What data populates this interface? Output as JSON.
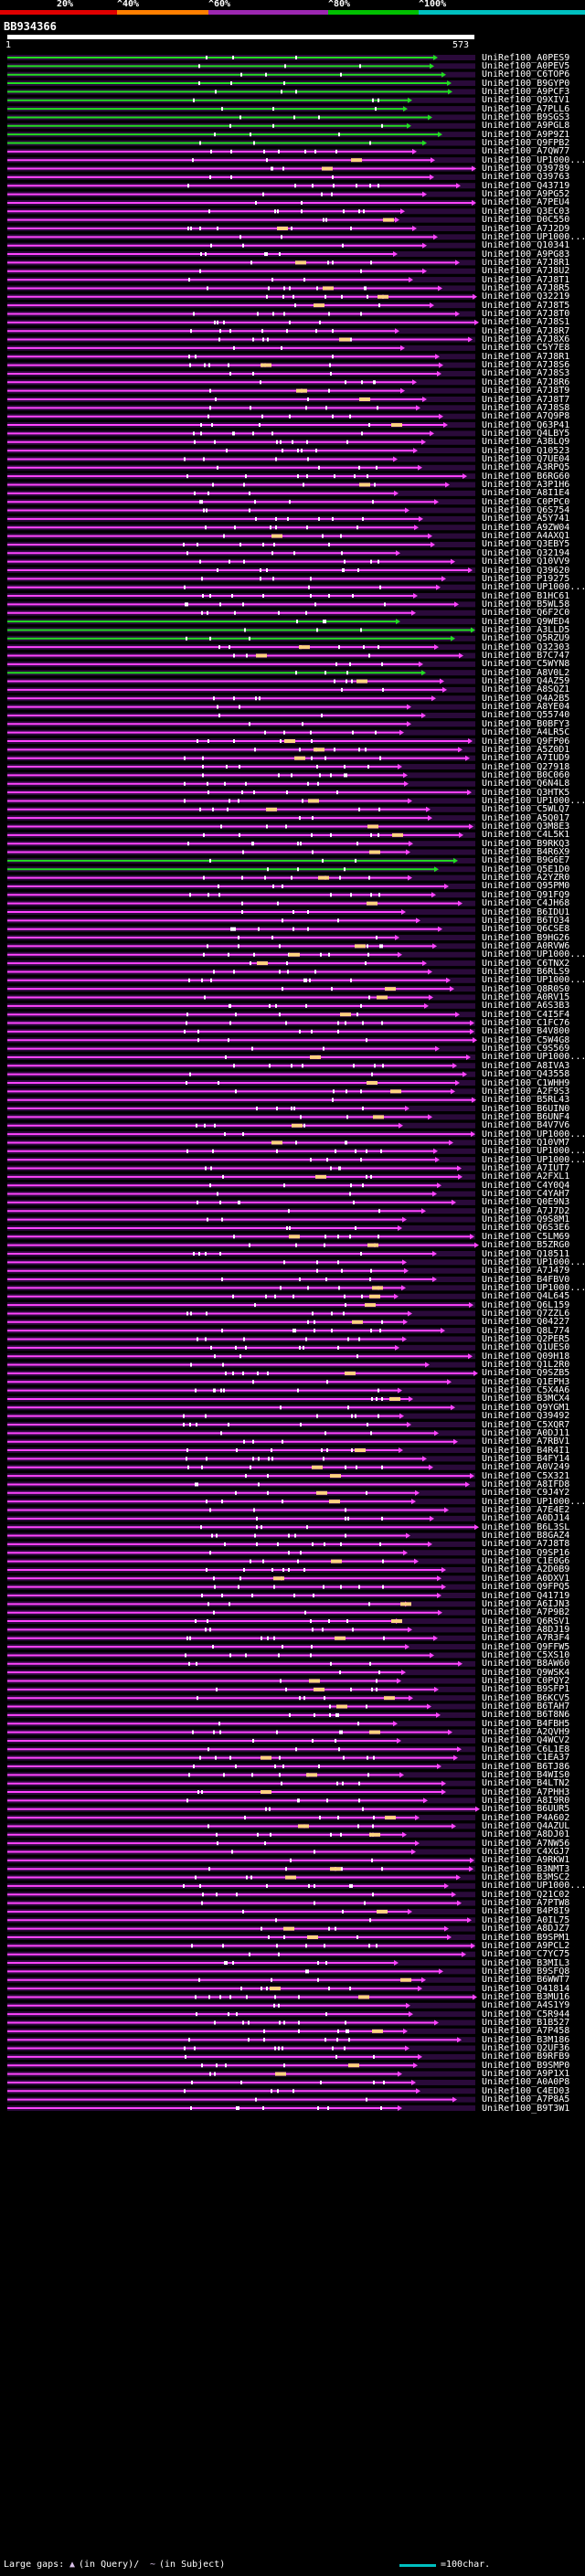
{
  "scale": {
    "ticks": [
      "20%",
      "^40%",
      "^60%",
      "^80%",
      "^100%"
    ],
    "colors": [
      "#e00000",
      "#ff7f00",
      "#9c27b0",
      "#00c000",
      "#00c0c0"
    ]
  },
  "query": {
    "id": "BB934366",
    "start": "1",
    "end": "573"
  },
  "colors": {
    "magenta": "#ff44ff",
    "violet": "#9c27b0",
    "green": "#22dd22",
    "orange": "#ff9900",
    "cyan": "#00c0c0"
  },
  "hits": [
    {
      "label": "UniRef100_A0PES9",
      "color": "green"
    },
    {
      "label": "UniRef100_A0PEV5",
      "color": "green"
    },
    {
      "label": "UniRef100_C6TOP6",
      "color": "green"
    },
    {
      "label": "UniRef100_B9GYP0",
      "color": "green"
    },
    {
      "label": "UniRef100_A9PCF3",
      "color": "green"
    },
    {
      "label": "UniRef100_Q9XIV1",
      "color": "green"
    },
    {
      "label": "UniRef100_A7PLL6",
      "color": "green"
    },
    {
      "label": "UniRef100_B9SGS3",
      "color": "green"
    },
    {
      "label": "UniRef100_A9PGL8",
      "color": "green"
    },
    {
      "label": "UniRef100_A9P9Z1",
      "color": "green"
    },
    {
      "label": "UniRef100_Q9FPB2",
      "color": "green"
    },
    {
      "label": "UniRef100_A7QW77",
      "color": "magenta"
    },
    {
      "label": "UniRef100_UP1000...",
      "color": "magenta"
    },
    {
      "label": "UniRef100_Q39789",
      "color": "magenta"
    },
    {
      "label": "UniRef100_Q39763",
      "color": "magenta"
    },
    {
      "label": "UniRef100_Q43719",
      "color": "magenta"
    },
    {
      "label": "UniRef100_A9PG52",
      "color": "magenta"
    },
    {
      "label": "UniRef100_A7PEU4",
      "color": "magenta"
    },
    {
      "label": "UniRef100_Q3EC03",
      "color": "magenta"
    },
    {
      "label": "UniRef100_D0C550",
      "color": "magenta"
    },
    {
      "label": "UniRef100_A7J2D9",
      "color": "magenta"
    },
    {
      "label": "UniRef100_UP1000...",
      "color": "magenta"
    },
    {
      "label": "UniRef100_Q10341",
      "color": "magenta"
    },
    {
      "label": "UniRef100_A9PG83",
      "color": "magenta"
    },
    {
      "label": "UniRef100_A7J8R1",
      "color": "magenta"
    },
    {
      "label": "UniRef100_A7J8U2",
      "color": "magenta"
    },
    {
      "label": "UniRef100_A7J8T1",
      "color": "magenta"
    },
    {
      "label": "UniRef100_A7J8R5",
      "color": "magenta"
    },
    {
      "label": "UniRef100_Q32219",
      "color": "magenta"
    },
    {
      "label": "UniRef100_A7J8T5",
      "color": "magenta"
    },
    {
      "label": "UniRef100_A7J8T0",
      "color": "magenta"
    },
    {
      "label": "UniRef100_A7J8S1",
      "color": "magenta"
    },
    {
      "label": "UniRef100_A7J8R7",
      "color": "magenta"
    },
    {
      "label": "UniRef100_A7J8X6",
      "color": "magenta"
    },
    {
      "label": "UniRef100_C5Y7E8",
      "color": "magenta"
    },
    {
      "label": "UniRef100_A7J8R1",
      "color": "magenta"
    },
    {
      "label": "UniRef100_A7J8S6",
      "color": "magenta"
    },
    {
      "label": "UniRef100_A7J8S3",
      "color": "magenta"
    },
    {
      "label": "UniRef100_A7J8R6",
      "color": "magenta"
    },
    {
      "label": "UniRef100_A7J8T9",
      "color": "magenta"
    },
    {
      "label": "UniRef100_A7J8T7",
      "color": "magenta"
    },
    {
      "label": "UniRef100_A7J8S8",
      "color": "magenta"
    },
    {
      "label": "UniRef100_A7Q9P8",
      "color": "magenta"
    },
    {
      "label": "UniRef100_Q63P41",
      "color": "magenta"
    },
    {
      "label": "UniRef100_Q4LBY5",
      "color": "magenta"
    },
    {
      "label": "UniRef100_A3BLQ9",
      "color": "magenta"
    },
    {
      "label": "UniRef100_Q10523",
      "color": "magenta"
    },
    {
      "label": "UniRef100_Q7UE04",
      "color": "magenta"
    },
    {
      "label": "UniRef100_A3RPQ5",
      "color": "magenta"
    },
    {
      "label": "UniRef100_B6RG60",
      "color": "magenta"
    },
    {
      "label": "UniRef100_A3P1H6",
      "color": "magenta"
    },
    {
      "label": "UniRef100_A8I1E4",
      "color": "magenta"
    },
    {
      "label": "UniRef100_C0PPC0",
      "color": "magenta"
    },
    {
      "label": "UniRef100_Q6S754",
      "color": "magenta"
    },
    {
      "label": "UniRef100_A5Y741",
      "color": "magenta"
    },
    {
      "label": "UniRef100_A9ZW04",
      "color": "magenta"
    },
    {
      "label": "UniRef100_A4AXQ1",
      "color": "magenta"
    },
    {
      "label": "UniRef100_Q3EBY5",
      "color": "magenta"
    },
    {
      "label": "UniRef100_Q32194",
      "color": "magenta"
    },
    {
      "label": "UniRef100_Q10VV9",
      "color": "magenta"
    },
    {
      "label": "UniRef100_Q39620",
      "color": "magenta"
    },
    {
      "label": "UniRef100_P19275",
      "color": "magenta"
    },
    {
      "label": "UniRef100_UP1000...",
      "color": "magenta"
    },
    {
      "label": "UniRef100_B1HC61",
      "color": "magenta"
    },
    {
      "label": "UniRef100_B5WL58",
      "color": "magenta"
    },
    {
      "label": "UniRef100_Q6F2C0",
      "color": "magenta"
    },
    {
      "label": "UniRef100_Q9WED4",
      "color": "green"
    },
    {
      "label": "UniRef100_A3LLD5",
      "color": "green"
    },
    {
      "label": "UniRef100_Q5RZU9",
      "color": "green"
    },
    {
      "label": "UniRef100_Q32303",
      "color": "magenta"
    },
    {
      "label": "UniRef100_B7C747",
      "color": "magenta"
    },
    {
      "label": "UniRef100_C5WYN8",
      "color": "magenta"
    },
    {
      "label": "UniRef100_A8V0L2",
      "color": "green"
    },
    {
      "label": "UniRef100_Q4AZ59",
      "color": "magenta"
    },
    {
      "label": "UniRef100_A8SQZ1",
      "color": "magenta"
    },
    {
      "label": "UniRef100_Q4A2B5",
      "color": "magenta"
    },
    {
      "label": "UniRef100_A8YE04",
      "color": "magenta"
    },
    {
      "label": "UniRef100_Q55740",
      "color": "magenta"
    },
    {
      "label": "UniRef100_B0BFY3",
      "color": "magenta"
    },
    {
      "label": "UniRef100_A4LR5C",
      "color": "magenta"
    },
    {
      "label": "UniRef100_Q9FP06",
      "color": "magenta"
    },
    {
      "label": "UniRef100_A5Z0D1",
      "color": "magenta"
    },
    {
      "label": "UniRef100_A7IUD9",
      "color": "magenta"
    },
    {
      "label": "UniRef100_Q27918",
      "color": "magenta"
    },
    {
      "label": "UniRef100_B0C060",
      "color": "magenta"
    },
    {
      "label": "UniRef100_Q6N4L8",
      "color": "magenta"
    },
    {
      "label": "UniRef100_Q3HTK5",
      "color": "magenta"
    },
    {
      "label": "UniRef100_UP1000...",
      "color": "magenta"
    },
    {
      "label": "UniRef100_C5WLQ7",
      "color": "magenta"
    },
    {
      "label": "UniRef100_A5Q017",
      "color": "magenta"
    },
    {
      "label": "UniRef100_Q3M8E3",
      "color": "magenta"
    },
    {
      "label": "UniRef100_C4L5K1",
      "color": "magenta"
    },
    {
      "label": "UniRef100_B9RKQ3",
      "color": "magenta"
    },
    {
      "label": "UniRef100_B4R6X9",
      "color": "magenta"
    },
    {
      "label": "UniRef100_B9G6E7",
      "color": "green"
    },
    {
      "label": "UniRef100_Q5E1D0",
      "color": "green"
    },
    {
      "label": "UniRef100_A2YZR0",
      "color": "magenta"
    },
    {
      "label": "UniRef100_Q95PM0",
      "color": "magenta"
    },
    {
      "label": "UniRef100_Q91FQ9",
      "color": "magenta"
    },
    {
      "label": "UniRef100_C4JH68",
      "color": "magenta"
    },
    {
      "label": "UniRef100_B6IDU1",
      "color": "magenta"
    },
    {
      "label": "UniRef100_B6TO34",
      "color": "magenta"
    },
    {
      "label": "UniRef100_Q6CSE8",
      "color": "magenta"
    },
    {
      "label": "UniRef100_B9HG26",
      "color": "magenta"
    },
    {
      "label": "UniRef100_A0RVW6",
      "color": "magenta"
    },
    {
      "label": "UniRef100_UP1000...",
      "color": "magenta"
    },
    {
      "label": "UniRef100_C6TNX2",
      "color": "magenta"
    },
    {
      "label": "UniRef100_B6RLS9",
      "color": "magenta"
    },
    {
      "label": "UniRef100_UP1000...",
      "color": "magenta"
    },
    {
      "label": "UniRef100_Q8R0S0",
      "color": "magenta"
    },
    {
      "label": "UniRef100_A0RV15",
      "color": "magenta"
    },
    {
      "label": "UniRef100_A6S3B3",
      "color": "magenta"
    },
    {
      "label": "UniRef100_C4I5F4",
      "color": "magenta"
    },
    {
      "label": "UniRef100_C1FC76",
      "color": "magenta"
    },
    {
      "label": "UniRef100_B4V800",
      "color": "magenta"
    },
    {
      "label": "UniRef100_C5W4G8",
      "color": "magenta"
    },
    {
      "label": "UniRef100_C9S569",
      "color": "magenta"
    },
    {
      "label": "UniRef100_UP1000...",
      "color": "magenta"
    },
    {
      "label": "UniRef100_A8IVA3",
      "color": "magenta"
    },
    {
      "label": "UniRef100_Q43558",
      "color": "magenta"
    },
    {
      "label": "UniRef100_C1WHH9",
      "color": "magenta"
    },
    {
      "label": "UniRef100_A2F9S3",
      "color": "magenta"
    },
    {
      "label": "UniRef100_B5RL43",
      "color": "magenta"
    },
    {
      "label": "UniRef100_B6UIN0",
      "color": "magenta"
    },
    {
      "label": "UniRef100_B6UNF4",
      "color": "magenta"
    },
    {
      "label": "UniRef100_B4V7V6",
      "color": "magenta"
    },
    {
      "label": "UniRef100_UP1000...",
      "color": "magenta"
    },
    {
      "label": "UniRef100_Q10VM7",
      "color": "magenta"
    },
    {
      "label": "UniRef100_UP1000...",
      "color": "magenta"
    },
    {
      "label": "UniRef100_UP1000...",
      "color": "magenta"
    },
    {
      "label": "UniRef100_A7IUT7",
      "color": "magenta"
    },
    {
      "label": "UniRef100_A2FXL1",
      "color": "magenta"
    },
    {
      "label": "UniRef100_C4Y0Q4",
      "color": "magenta"
    },
    {
      "label": "UniRef100_C4YAH7",
      "color": "magenta"
    },
    {
      "label": "UniRef100_Q0E9N3",
      "color": "magenta"
    },
    {
      "label": "UniRef100_A7J7D2",
      "color": "magenta"
    },
    {
      "label": "UniRef100_Q9S8M1",
      "color": "magenta"
    },
    {
      "label": "UniRef100_Q6S3E6",
      "color": "magenta"
    },
    {
      "label": "UniRef100_C5LM69",
      "color": "magenta"
    },
    {
      "label": "UniRef100_B5ZRG0",
      "color": "magenta"
    },
    {
      "label": "UniRef100_Q18511",
      "color": "magenta"
    },
    {
      "label": "UniRef100_UP1000...",
      "color": "magenta"
    },
    {
      "label": "UniRef100_A7J479",
      "color": "magenta"
    },
    {
      "label": "UniRef100_B4FBV0",
      "color": "magenta"
    },
    {
      "label": "UniRef100_UP1000...",
      "color": "magenta"
    },
    {
      "label": "UniRef100_Q4L645",
      "color": "magenta"
    },
    {
      "label": "UniRef100_Q6L159",
      "color": "magenta"
    },
    {
      "label": "UniRef100_Q7ZZL6",
      "color": "magenta"
    },
    {
      "label": "UniRef100_Q04227",
      "color": "magenta"
    },
    {
      "label": "UniRef100_Q8L774",
      "color": "magenta"
    },
    {
      "label": "UniRef100_Q2PER5",
      "color": "magenta"
    },
    {
      "label": "UniRef100_Q1UES0",
      "color": "magenta"
    },
    {
      "label": "UniRef100_Q09H18",
      "color": "magenta"
    },
    {
      "label": "UniRef100_Q1L2R0",
      "color": "magenta"
    },
    {
      "label": "UniRef100_Q9SZB5",
      "color": "magenta"
    },
    {
      "label": "UniRef100_Q1EPH3",
      "color": "magenta"
    },
    {
      "label": "UniRef100_C5X4A6",
      "color": "magenta"
    },
    {
      "label": "UniRef100_B3MCX4",
      "color": "magenta"
    },
    {
      "label": "UniRef100_Q9YGM1",
      "color": "magenta"
    },
    {
      "label": "UniRef100_Q39492",
      "color": "magenta"
    },
    {
      "label": "UniRef100_C5XQR7",
      "color": "magenta"
    },
    {
      "label": "UniRef100_A0DJ11",
      "color": "magenta"
    },
    {
      "label": "UniRef100_A7RBV1",
      "color": "magenta"
    },
    {
      "label": "UniRef100_B4R4I1",
      "color": "magenta"
    },
    {
      "label": "UniRef100_B4FY14",
      "color": "magenta"
    },
    {
      "label": "UniRef100_A0V249",
      "color": "magenta"
    },
    {
      "label": "UniRef100_C5X321",
      "color": "magenta"
    },
    {
      "label": "UniRef100_A8IFD8",
      "color": "magenta"
    },
    {
      "label": "UniRef100_C9J4Y2",
      "color": "magenta"
    },
    {
      "label": "UniRef100_UP1000...",
      "color": "magenta"
    },
    {
      "label": "UniRef100_A7E4E2",
      "color": "magenta"
    },
    {
      "label": "UniRef100_A0DJ14",
      "color": "magenta"
    },
    {
      "label": "UniRef100_B6L3SL",
      "color": "magenta"
    },
    {
      "label": "UniRef100_B8GAZ4",
      "color": "magenta"
    },
    {
      "label": "UniRef100_A7J8T8",
      "color": "magenta"
    },
    {
      "label": "UniRef100_Q9SP16",
      "color": "magenta"
    },
    {
      "label": "UniRef100_C1E0G6",
      "color": "magenta"
    },
    {
      "label": "UniRef100_A2D0B9",
      "color": "magenta"
    },
    {
      "label": "UniRef100_A0DXV1",
      "color": "magenta"
    },
    {
      "label": "UniRef100_Q9FPQ5",
      "color": "magenta"
    },
    {
      "label": "UniRef100_Q41719",
      "color": "magenta"
    },
    {
      "label": "UniRef100_A6IJN3",
      "color": "magenta"
    },
    {
      "label": "UniRef100_A7P9B2",
      "color": "magenta"
    },
    {
      "label": "UniRef100_Q6RSV1",
      "color": "magenta"
    },
    {
      "label": "UniRef100_A8DJ19",
      "color": "magenta"
    },
    {
      "label": "UniRef100_A7R3F4",
      "color": "magenta"
    },
    {
      "label": "UniRef100_Q9FFW5",
      "color": "magenta"
    },
    {
      "label": "UniRef100_C5XS10",
      "color": "magenta"
    },
    {
      "label": "UniRef100_B8AW60",
      "color": "magenta"
    },
    {
      "label": "UniRef100_Q9WSK4",
      "color": "magenta"
    },
    {
      "label": "UniRef100_C0PQY2",
      "color": "magenta"
    },
    {
      "label": "UniRef100_B9SFP1",
      "color": "magenta"
    },
    {
      "label": "UniRef100_B6KCV5",
      "color": "magenta"
    },
    {
      "label": "UniRef100_B6TAH7",
      "color": "magenta"
    },
    {
      "label": "UniRef100_B6T8N6",
      "color": "magenta"
    },
    {
      "label": "UniRef100_B4FBH5",
      "color": "magenta"
    },
    {
      "label": "UniRef100_A2QVH9",
      "color": "magenta"
    },
    {
      "label": "UniRef100_Q4WCV2",
      "color": "magenta"
    },
    {
      "label": "UniRef100_C6L1E8",
      "color": "magenta"
    },
    {
      "label": "UniRef100_C1EA37",
      "color": "magenta"
    },
    {
      "label": "UniRef100_B6TJ86",
      "color": "magenta"
    },
    {
      "label": "UniRef100_B4WIS0",
      "color": "magenta"
    },
    {
      "label": "UniRef100_B4LTN2",
      "color": "magenta"
    },
    {
      "label": "UniRef100_A7PHH3",
      "color": "magenta"
    },
    {
      "label": "UniRef100_A8I9R0",
      "color": "magenta"
    },
    {
      "label": "UniRef100_B6UUR5",
      "color": "magenta"
    },
    {
      "label": "UniRef100_P4A602",
      "color": "magenta"
    },
    {
      "label": "UniRef100_Q4AZUL",
      "color": "magenta"
    },
    {
      "label": "UniRef100_A8DJ01",
      "color": "magenta"
    },
    {
      "label": "UniRef100_A7NW56",
      "color": "magenta"
    },
    {
      "label": "UniRef100_C4XGJ7",
      "color": "magenta"
    },
    {
      "label": "UniRef100_A9RKW1",
      "color": "magenta"
    },
    {
      "label": "UniRef100_B3NMT3",
      "color": "magenta"
    },
    {
      "label": "UniRef100_B3MSC2",
      "color": "magenta"
    },
    {
      "label": "UniRef100_UP1000...",
      "color": "magenta"
    },
    {
      "label": "UniRef100_Q21C02",
      "color": "magenta"
    },
    {
      "label": "UniRef100_A7PTW8",
      "color": "magenta"
    },
    {
      "label": "UniRef100_B4P8I9",
      "color": "magenta"
    },
    {
      "label": "UniRef100_A0IL75",
      "color": "magenta"
    },
    {
      "label": "UniRef100_A8DJZ7",
      "color": "magenta"
    },
    {
      "label": "UniRef100_B9SPM1",
      "color": "magenta"
    },
    {
      "label": "UniRef100_A9PCL2",
      "color": "magenta"
    },
    {
      "label": "UniRef100_C7YC75",
      "color": "magenta"
    },
    {
      "label": "UniRef100_B3MIL3",
      "color": "magenta"
    },
    {
      "label": "UniRef100_B9SFQ8",
      "color": "magenta"
    },
    {
      "label": "UniRef100_B6WWT7",
      "color": "magenta"
    },
    {
      "label": "UniRef100_Q41814",
      "color": "magenta"
    },
    {
      "label": "UniRef100_B3MU16",
      "color": "magenta"
    },
    {
      "label": "UniRef100_A4S1Y9",
      "color": "magenta"
    },
    {
      "label": "UniRef100_C5R944",
      "color": "magenta"
    },
    {
      "label": "UniRef100_B1B527",
      "color": "magenta"
    },
    {
      "label": "UniRef100_A7P458",
      "color": "magenta"
    },
    {
      "label": "UniRef100_B3M186",
      "color": "magenta"
    },
    {
      "label": "UniRef100_Q2UF36",
      "color": "magenta"
    },
    {
      "label": "UniRef100_B9RFB9",
      "color": "magenta"
    },
    {
      "label": "UniRef100_B9SMP0",
      "color": "magenta"
    },
    {
      "label": "UniRef100_A9P1X1",
      "color": "magenta"
    },
    {
      "label": "UniRef100_A0A0P8",
      "color": "magenta"
    },
    {
      "label": "UniRef100_C4ED03",
      "color": "magenta"
    },
    {
      "label": "UniRef100_A7P8A5",
      "color": "magenta"
    },
    {
      "label": "UniRef100_B9T3W1",
      "color": "magenta"
    }
  ],
  "legend": {
    "text1": "Large gaps:",
    "glyph": "▲",
    "text2": "(in Query)/",
    "text3": "~",
    "text4": "(in Subject)",
    "text5": "=100char."
  }
}
